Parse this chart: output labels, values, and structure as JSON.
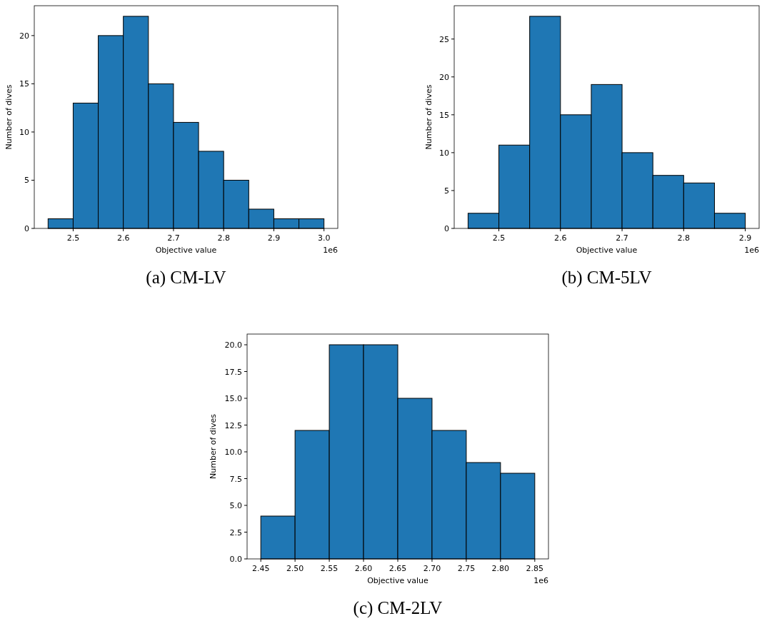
{
  "chart_data": [
    {
      "type": "histogram",
      "title": "(a) CM-LV",
      "xlabel": "Objective value",
      "ylabel": "Number of dives",
      "annotations": [
        "1e6"
      ],
      "color": "#1f77b4",
      "bins": [
        2.45,
        2.5,
        2.55,
        2.6,
        2.65,
        2.7,
        2.75,
        2.8,
        2.85,
        2.9,
        2.95,
        3.0
      ],
      "values": [
        1,
        13,
        20,
        22,
        15,
        11,
        8,
        5,
        2,
        1,
        1
      ],
      "xlim": [
        2.4225,
        3.0275
      ],
      "xticks": [
        2.5,
        2.6,
        2.7,
        2.8,
        2.9,
        {
          "value": 3,
          "label": "3.0"
        }
      ],
      "ylim": [
        0,
        23.1
      ],
      "yticks": [
        0,
        5,
        10,
        15,
        20
      ],
      "grid": false
    },
    {
      "type": "histogram",
      "title": "(b) CM-5LV",
      "xlabel": "Objective value",
      "ylabel": "Number of dives",
      "annotations": [
        "1e6"
      ],
      "color": "#1f77b4",
      "bins": [
        2.45,
        2.5,
        2.55,
        2.6,
        2.65,
        2.7,
        2.75,
        2.8,
        2.85,
        2.9
      ],
      "values": [
        2,
        11,
        28,
        15,
        19,
        10,
        7,
        6,
        2
      ],
      "xlim": [
        2.4275,
        2.9225
      ],
      "xticks": [
        2.5,
        2.6,
        2.7,
        2.8,
        2.9
      ],
      "ylim": [
        0,
        29.4
      ],
      "yticks": [
        0,
        5,
        10,
        15,
        20,
        25
      ],
      "grid": false
    },
    {
      "type": "histogram",
      "title": "(c) CM-2LV",
      "xlabel": "Objective value",
      "ylabel": "Number of dives",
      "annotations": [
        "1e6"
      ],
      "color": "#1f77b4",
      "bins": [
        2.45,
        2.5,
        2.55,
        2.6,
        2.65,
        2.7,
        2.75,
        2.8,
        2.85
      ],
      "values": [
        4,
        12,
        20,
        20,
        15,
        12,
        9,
        8
      ],
      "xlim": [
        2.43,
        2.87
      ],
      "xticks": [
        2.45,
        {
          "value": 2.5,
          "label": "2.50"
        },
        2.55,
        {
          "value": 2.6,
          "label": "2.60"
        },
        2.65,
        {
          "value": 2.7,
          "label": "2.70"
        },
        2.75,
        {
          "value": 2.8,
          "label": "2.80"
        },
        2.85
      ],
      "ylim": [
        0,
        21
      ],
      "yticks": [
        {
          "value": 0,
          "label": "0.0"
        },
        2.5,
        {
          "value": 5,
          "label": "5.0"
        },
        7.5,
        {
          "value": 10,
          "label": "10.0"
        },
        12.5,
        {
          "value": 15,
          "label": "15.0"
        },
        17.5,
        {
          "value": 20,
          "label": "20.0"
        }
      ],
      "grid": false
    }
  ]
}
